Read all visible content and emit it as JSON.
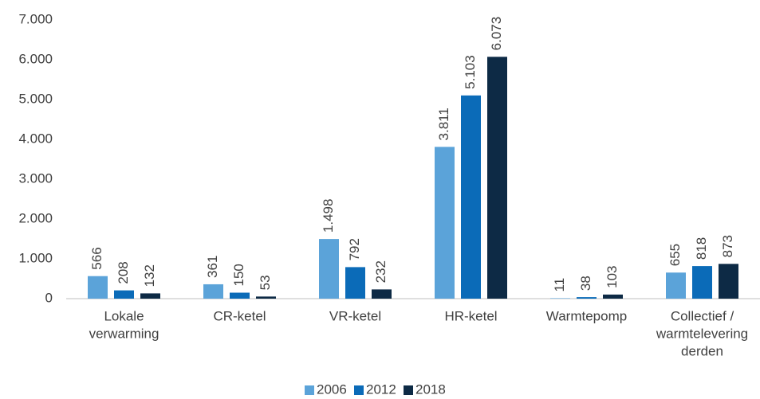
{
  "chart_data": {
    "type": "bar",
    "categories": [
      [
        "Lokale",
        "verwarming"
      ],
      [
        "CR-ketel"
      ],
      [
        "VR-ketel"
      ],
      [
        "HR-ketel"
      ],
      [
        "Warmtepomp"
      ],
      [
        "Collectief /",
        "warmtelevering",
        "derden"
      ]
    ],
    "series": [
      {
        "name": "2006",
        "color": "#5ba3d9",
        "values": [
          566,
          361,
          1498,
          3811,
          11,
          655
        ],
        "value_labels": [
          "566",
          "361",
          "1.498",
          "3.811",
          "11",
          "655"
        ]
      },
      {
        "name": "2012",
        "color": "#0b6bb8",
        "values": [
          208,
          150,
          792,
          5103,
          38,
          818
        ],
        "value_labels": [
          "208",
          "150",
          "792",
          "5.103",
          "38",
          "818"
        ]
      },
      {
        "name": "2018",
        "color": "#0d2a45",
        "values": [
          132,
          53,
          232,
          6073,
          103,
          873
        ],
        "value_labels": [
          "132",
          "53",
          "232",
          "6.073",
          "103",
          "873"
        ]
      }
    ],
    "ylim": [
      0,
      7000
    ],
    "yticks": [
      0,
      {
        "value": 1000,
        "label": "1.000"
      },
      {
        "value": 2000,
        "label": "2.000"
      },
      {
        "value": 3000,
        "label": "3.000"
      },
      {
        "value": 4000,
        "label": "4.000"
      },
      {
        "value": 5000,
        "label": "5.000"
      },
      {
        "value": 6000,
        "label": "6.000"
      },
      {
        "value": 7000,
        "label": "7.000"
      }
    ],
    "grid": false,
    "legend": "bottom"
  }
}
